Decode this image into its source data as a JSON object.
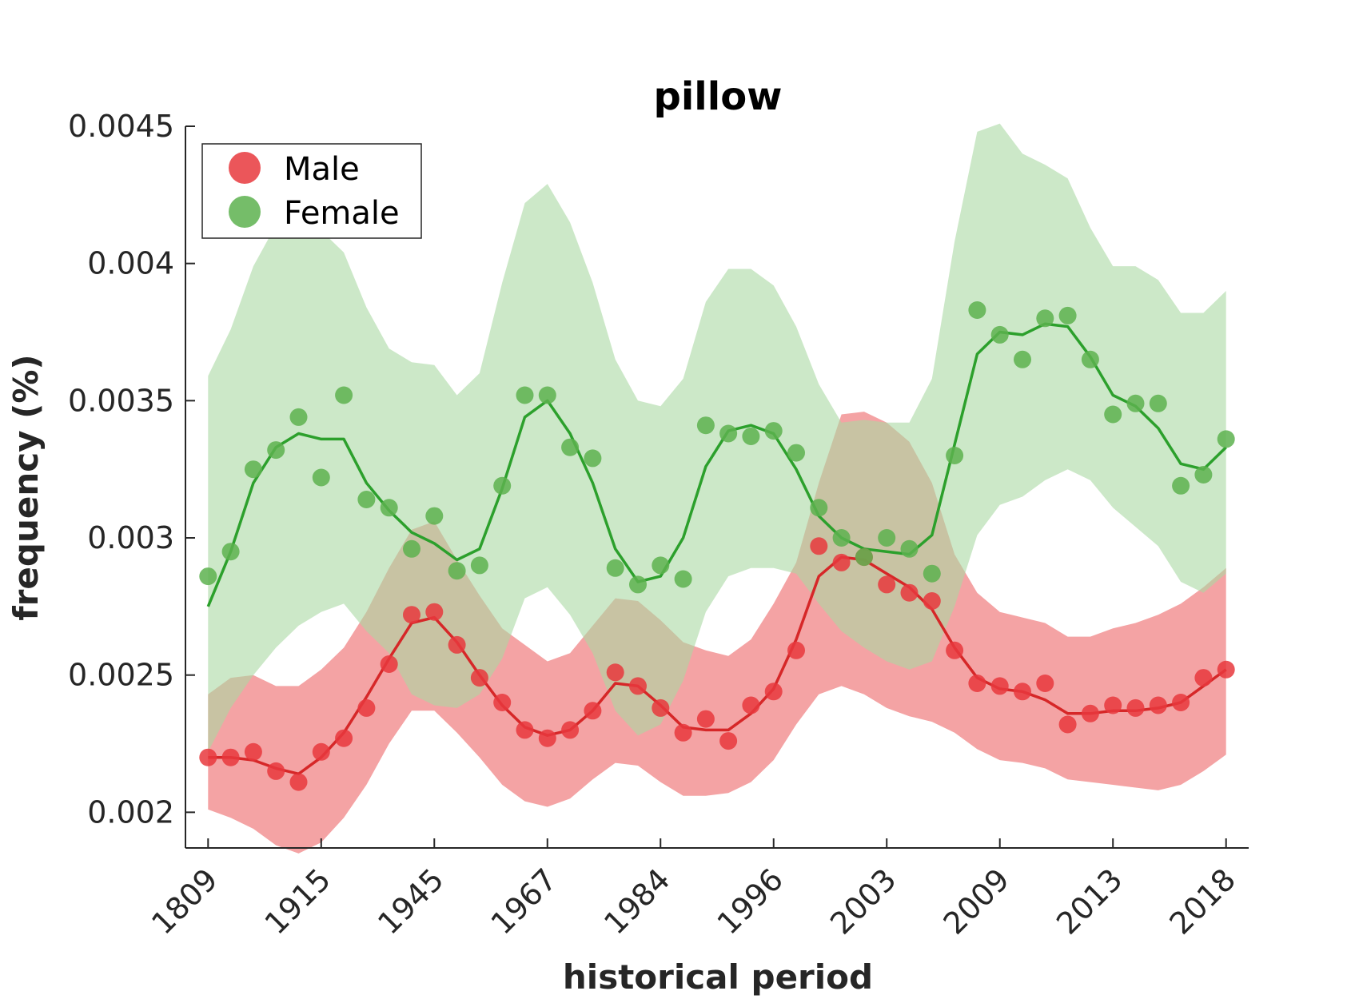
{
  "chart_data": {
    "type": "scatter",
    "title": "pillow",
    "xlabel": "historical period",
    "ylabel": "frequency (%)",
    "ylim": [
      0.00187,
      0.0045
    ],
    "yticks": [
      "0.002",
      "0.0025",
      "0.003",
      "0.0035",
      "0.004",
      "0.0045"
    ],
    "ytick_values": [
      0.002,
      0.0025,
      0.003,
      0.0035,
      0.004,
      0.0045
    ],
    "xtick_labels": [
      "1809",
      "1915",
      "1945",
      "1967",
      "1984",
      "1996",
      "2003",
      "2009",
      "2013",
      "2018"
    ],
    "xtick_positions": [
      1,
      6,
      11,
      16,
      21,
      26,
      31,
      36,
      41,
      46
    ],
    "xlim": [
      0,
      47
    ],
    "grid": false,
    "legend_position": "top-left",
    "series": [
      {
        "name": "Male",
        "color": "#e8383d",
        "line_color": "#d62728",
        "band_color": "#f4a3a4",
        "x": [
          1,
          2,
          3,
          4,
          5,
          6,
          7,
          8,
          9,
          10,
          11,
          12,
          13,
          14,
          15,
          16,
          17,
          18,
          19,
          20,
          21,
          22,
          23,
          24,
          25,
          26,
          27,
          28,
          29,
          30,
          31,
          32,
          33,
          34,
          35,
          36,
          37,
          38,
          39,
          40,
          41,
          42,
          43,
          44,
          45,
          46
        ],
        "points": [
          0.0022,
          0.0022,
          0.00222,
          0.00215,
          0.00211,
          0.00222,
          0.00227,
          0.00238,
          0.00254,
          0.00272,
          0.00273,
          0.00261,
          0.00249,
          0.0024,
          0.0023,
          0.00227,
          0.0023,
          0.00237,
          0.00251,
          0.00246,
          0.00238,
          0.00229,
          0.00234,
          0.00226,
          0.00239,
          0.00244,
          0.00259,
          0.00297,
          0.00291,
          0.00293,
          0.00283,
          0.0028,
          0.00277,
          0.00259,
          0.00247,
          0.00246,
          0.00244,
          0.00247,
          0.00232,
          0.00236,
          0.00239,
          0.00238,
          0.00239,
          0.0024,
          0.00249,
          0.00252
        ],
        "trend": [
          0.0022,
          0.0022,
          0.00219,
          0.00216,
          0.00214,
          0.0022,
          0.00229,
          0.00242,
          0.00256,
          0.00269,
          0.00271,
          0.00262,
          0.0025,
          0.00239,
          0.00231,
          0.00228,
          0.0023,
          0.00237,
          0.00247,
          0.00246,
          0.00239,
          0.00231,
          0.0023,
          0.0023,
          0.00236,
          0.00245,
          0.00263,
          0.00286,
          0.00293,
          0.00292,
          0.00287,
          0.00282,
          0.00274,
          0.0026,
          0.00249,
          0.00245,
          0.00244,
          0.00241,
          0.00236,
          0.00236,
          0.00237,
          0.00237,
          0.00238,
          0.0024,
          0.00246,
          0.00252
        ],
        "band_upper": [
          0.00243,
          0.00249,
          0.0025,
          0.00246,
          0.00246,
          0.00252,
          0.0026,
          0.00273,
          0.00289,
          0.00303,
          0.00306,
          0.00292,
          0.00279,
          0.00267,
          0.00261,
          0.00255,
          0.00258,
          0.00268,
          0.00278,
          0.00277,
          0.0027,
          0.00262,
          0.00259,
          0.00257,
          0.00263,
          0.00276,
          0.00291,
          0.0032,
          0.00345,
          0.00346,
          0.00342,
          0.00335,
          0.0032,
          0.00294,
          0.0028,
          0.00273,
          0.00271,
          0.00269,
          0.00264,
          0.00264,
          0.00267,
          0.00269,
          0.00272,
          0.00276,
          0.00282,
          0.00289
        ],
        "band_lower": [
          0.00201,
          0.00198,
          0.00194,
          0.00188,
          0.00185,
          0.00189,
          0.00198,
          0.0021,
          0.00225,
          0.00237,
          0.00237,
          0.00229,
          0.0022,
          0.0021,
          0.00204,
          0.00202,
          0.00205,
          0.00212,
          0.00218,
          0.00217,
          0.00211,
          0.00206,
          0.00206,
          0.00207,
          0.00211,
          0.00219,
          0.00232,
          0.00243,
          0.00246,
          0.00243,
          0.00238,
          0.00235,
          0.00233,
          0.00229,
          0.00223,
          0.00219,
          0.00218,
          0.00216,
          0.00212,
          0.00211,
          0.0021,
          0.00209,
          0.00208,
          0.0021,
          0.00215,
          0.00221
        ]
      },
      {
        "name": "Female",
        "color": "#5db14f",
        "line_color": "#2ca02c",
        "band_color": "#aad8a3",
        "x": [
          1,
          2,
          3,
          4,
          5,
          6,
          7,
          8,
          9,
          10,
          11,
          12,
          13,
          14,
          15,
          16,
          17,
          18,
          19,
          20,
          21,
          22,
          23,
          24,
          25,
          26,
          27,
          28,
          29,
          30,
          31,
          32,
          33,
          34,
          35,
          36,
          37,
          38,
          39,
          40,
          41,
          42,
          43,
          44,
          45,
          46
        ],
        "points": [
          0.00286,
          0.00295,
          0.00325,
          0.00332,
          0.00344,
          0.00322,
          0.00352,
          0.00314,
          0.00311,
          0.00296,
          0.00308,
          0.00288,
          0.0029,
          0.00319,
          0.00352,
          0.00352,
          0.00333,
          0.00329,
          0.00289,
          0.00283,
          0.0029,
          0.00285,
          0.00341,
          0.00338,
          0.00337,
          0.00339,
          0.00331,
          0.00311,
          0.003,
          0.00293,
          0.003,
          0.00296,
          0.00287,
          0.0033,
          0.00383,
          0.00374,
          0.00365,
          0.0038,
          0.00381,
          0.00365,
          0.00345,
          0.00349,
          0.00349,
          0.00319,
          0.00323,
          0.00336
        ],
        "trend": [
          0.00275,
          0.00295,
          0.0032,
          0.00333,
          0.00338,
          0.00336,
          0.00336,
          0.0032,
          0.0031,
          0.00302,
          0.00298,
          0.00292,
          0.00296,
          0.00318,
          0.00344,
          0.0035,
          0.00338,
          0.0032,
          0.00296,
          0.00284,
          0.00286,
          0.003,
          0.00326,
          0.00339,
          0.00341,
          0.00338,
          0.00325,
          0.00308,
          0.003,
          0.00296,
          0.00295,
          0.00294,
          0.00301,
          0.00334,
          0.00367,
          0.00375,
          0.00374,
          0.00378,
          0.00377,
          0.00366,
          0.00352,
          0.00348,
          0.0034,
          0.00327,
          0.00325,
          0.00333
        ],
        "band_upper": [
          0.00359,
          0.00376,
          0.00399,
          0.00414,
          0.00416,
          0.00412,
          0.00404,
          0.00384,
          0.00369,
          0.00364,
          0.00363,
          0.00352,
          0.0036,
          0.00393,
          0.00422,
          0.00429,
          0.00415,
          0.00393,
          0.00365,
          0.0035,
          0.00348,
          0.00358,
          0.00386,
          0.00398,
          0.00398,
          0.00392,
          0.00377,
          0.00356,
          0.00342,
          0.00343,
          0.00342,
          0.00342,
          0.00358,
          0.00408,
          0.00448,
          0.00451,
          0.0044,
          0.00436,
          0.00431,
          0.00413,
          0.00399,
          0.00399,
          0.00394,
          0.00382,
          0.00382,
          0.0039
        ],
        "band_lower": [
          0.00222,
          0.00238,
          0.0025,
          0.0026,
          0.00268,
          0.00273,
          0.00276,
          0.00266,
          0.00258,
          0.00243,
          0.00239,
          0.00238,
          0.00243,
          0.00256,
          0.00278,
          0.00282,
          0.00272,
          0.00258,
          0.00237,
          0.00228,
          0.00232,
          0.00248,
          0.00273,
          0.00286,
          0.00289,
          0.00289,
          0.00287,
          0.00276,
          0.00266,
          0.0026,
          0.00255,
          0.00252,
          0.00255,
          0.00275,
          0.00301,
          0.00312,
          0.00315,
          0.00321,
          0.00325,
          0.00321,
          0.00311,
          0.00304,
          0.00297,
          0.00284,
          0.0028,
          0.00287
        ]
      }
    ]
  }
}
